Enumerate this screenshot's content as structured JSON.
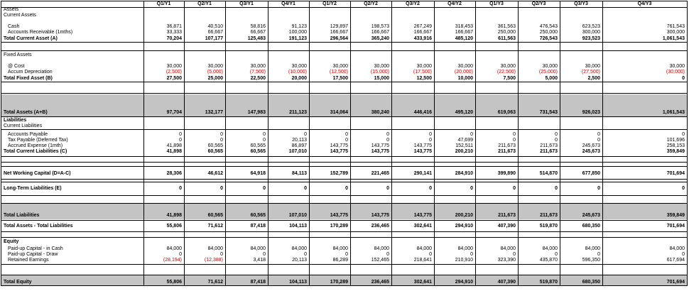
{
  "columns": [
    "Q1/Y1",
    "Q2/Y1",
    "Q3/Y1",
    "Q4/Y1",
    "Q1/Y2",
    "Q2/Y2",
    "Q3/Y2",
    "Q4/Y2",
    "Q1/Y3",
    "Q2/Y3",
    "Q3/Y3",
    "Q4/Y3"
  ],
  "colors": {
    "negative": "#d40000",
    "section_band": "#c4c4c4"
  },
  "rows": [
    {
      "label": "Assets",
      "values": []
    },
    {
      "label": "Current Assets",
      "values": []
    },
    {
      "label": "Cash",
      "indent": true,
      "values": [
        "36,871",
        "40,510",
        "58,816",
        "91,123",
        "129,897",
        "198,573",
        "267,249",
        "318,453",
        "361,563",
        "476,543",
        "623,523",
        "761,543"
      ]
    },
    {
      "label": "Accounts Receivable (1mths)",
      "indent": true,
      "values": [
        "33,333",
        "66,667",
        "66,667",
        "100,000",
        "166,667",
        "166,667",
        "166,667",
        "166,667",
        "250,000",
        "250,000",
        "300,000",
        "300,000"
      ]
    },
    {
      "label": "Total Current Asset (A)",
      "bold": true,
      "values": [
        "70,204",
        "107,177",
        "125,483",
        "191,123",
        "296,564",
        "365,240",
        "433,916",
        "485,120",
        "611,563",
        "726,543",
        "923,523",
        "1,061,543"
      ]
    },
    {
      "label": "Fixed Assets",
      "values": []
    },
    {
      "label": "@ Cost",
      "indent": true,
      "values": [
        "30,000",
        "30,000",
        "30,000",
        "30,000",
        "30,000",
        "30,000",
        "30,000",
        "30,000",
        "30,000",
        "30,000",
        "30,000",
        "30,000"
      ]
    },
    {
      "label": "Accum Depreciation",
      "indent": true,
      "negative": true,
      "values": [
        "(2,500)",
        "(5,000)",
        "(7,500)",
        "(10,000)",
        "(12,500)",
        "(15,000)",
        "(17,500)",
        "(20,000)",
        "(22,500)",
        "(25,000)",
        "(27,500)",
        "(30,000)"
      ]
    },
    {
      "label": "Total Fixed Asset (B)",
      "bold": true,
      "values": [
        "27,500",
        "25,000",
        "22,500",
        "20,000",
        "17,500",
        "15,000",
        "12,500",
        "10,000",
        "7,500",
        "5,000",
        "2,500",
        "0"
      ]
    },
    {
      "label": "Total Assets (A+B)",
      "bold": true,
      "values": [
        "97,704",
        "132,177",
        "147,983",
        "211,123",
        "314,064",
        "380,240",
        "446,416",
        "495,120",
        "619,063",
        "731,543",
        "926,023",
        "1,061,543"
      ]
    },
    {
      "label": "Liabilities",
      "bold": true,
      "values": []
    },
    {
      "label": "Current Liabilities",
      "values": []
    },
    {
      "label": "Accounts Payable",
      "indent": true,
      "values": [
        "0",
        "0",
        "0",
        "0",
        "0",
        "0",
        "0",
        "0",
        "0",
        "0",
        "0",
        "0"
      ]
    },
    {
      "label": "Tax Payable (Deferred Tax)",
      "indent": true,
      "values": [
        "0",
        "0",
        "0",
        "20,113",
        "0",
        "0",
        "0",
        "47,699",
        "0",
        "0",
        "0",
        "101,696"
      ]
    },
    {
      "label": "Accrued Expense (1mth)",
      "indent": true,
      "values": [
        "41,898",
        "60,565",
        "60,565",
        "86,897",
        "143,775",
        "143,775",
        "143,775",
        "152,511",
        "211,673",
        "211,673",
        "245,673",
        "258,153"
      ]
    },
    {
      "label": "Total Current Liabilities (C)",
      "bold": true,
      "values": [
        "41,898",
        "60,565",
        "60,565",
        "107,010",
        "143,775",
        "143,775",
        "143,775",
        "200,210",
        "211,673",
        "211,673",
        "245,673",
        "359,849"
      ]
    },
    {
      "label": "Net Working Capital (D=A-C)",
      "bold": true,
      "values": [
        "28,306",
        "46,612",
        "64,918",
        "84,113",
        "152,789",
        "221,465",
        "290,141",
        "284,910",
        "399,890",
        "514,870",
        "677,850",
        "701,694"
      ]
    },
    {
      "label": "Long-Term Liabilities (E)",
      "bold": true,
      "values": [
        "0",
        "0",
        "0",
        "0",
        "0",
        "0",
        "0",
        "0",
        "0",
        "0",
        "0",
        "0"
      ]
    },
    {
      "label": "Total Liabilities",
      "bold": true,
      "values": [
        "41,898",
        "60,565",
        "60,565",
        "107,010",
        "143,775",
        "143,775",
        "143,775",
        "200,210",
        "211,673",
        "211,673",
        "245,673",
        "359,849"
      ]
    },
    {
      "label": "Total Assets - Total Liabilities",
      "bold": true,
      "values": [
        "55,806",
        "71,612",
        "87,418",
        "104,113",
        "170,289",
        "236,465",
        "302,641",
        "294,910",
        "407,390",
        "519,870",
        "680,350",
        "701,694"
      ]
    },
    {
      "label": "Equity",
      "bold": true,
      "values": []
    },
    {
      "label": "Paid-up Capital - in Cash",
      "indent": true,
      "values": [
        "84,000",
        "84,000",
        "84,000",
        "84,000",
        "84,000",
        "84,000",
        "84,000",
        "84,000",
        "84,000",
        "84,000",
        "84,000",
        "84,000"
      ]
    },
    {
      "label": "Paid-up Capital - Draw",
      "indent": true,
      "values": [
        "0",
        "0",
        "0",
        "0",
        "0",
        "0",
        "0",
        "0",
        "0",
        "0",
        "0",
        "0"
      ]
    },
    {
      "label": "Retained Earnings",
      "indent": true,
      "values": [
        "(28,194)",
        "(12,388)",
        "3,418",
        "20,113",
        "86,289",
        "152,465",
        "218,641",
        "210,910",
        "323,390",
        "435,870",
        "596,350",
        "617,694"
      ],
      "negative_idx": [
        0,
        1
      ]
    },
    {
      "label": "Total Equity",
      "bold": true,
      "values": [
        "55,806",
        "71,612",
        "87,418",
        "104,113",
        "170,289",
        "236,465",
        "302,641",
        "294,910",
        "407,390",
        "519,870",
        "680,350",
        "701,694"
      ]
    }
  ]
}
